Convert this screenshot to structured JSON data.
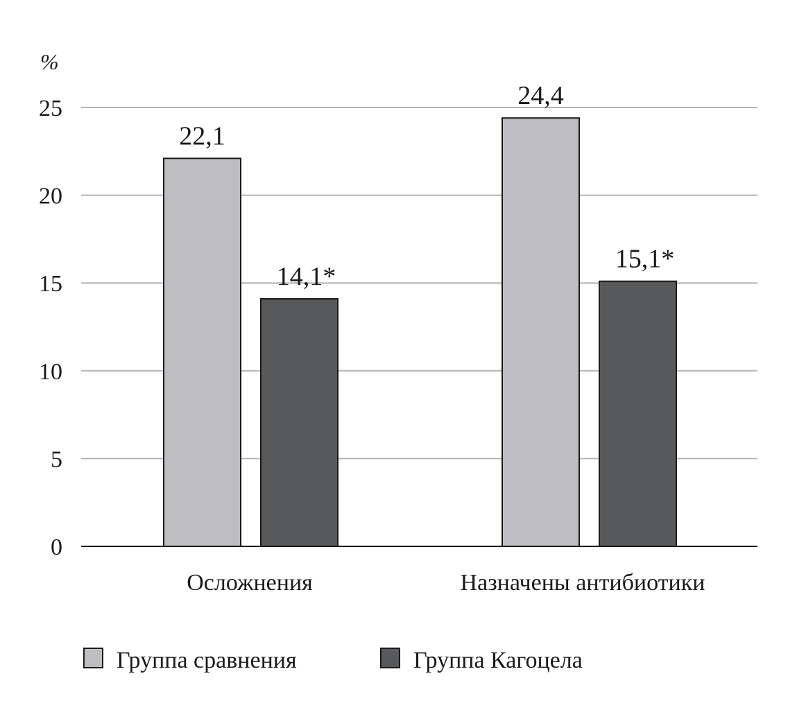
{
  "chart_data": {
    "type": "bar",
    "ylabel": "%",
    "ylim": [
      0,
      25
    ],
    "yticks": [
      "0",
      "5",
      "10",
      "15",
      "20",
      "25"
    ],
    "grid": true,
    "legend_position": "bottom-left",
    "categories": [
      "Осложнения",
      "Назначены антибиотики"
    ],
    "series": [
      {
        "name": "Группа сравнения",
        "color": "#bebec2",
        "values": [
          22.1,
          24.4
        ],
        "labels": [
          "22,1",
          "24,4"
        ]
      },
      {
        "name": "Группа Кагоцела",
        "color": "#58595b",
        "values": [
          14.1,
          15.1
        ],
        "labels": [
          "14,1*",
          "15,1*"
        ]
      }
    ]
  },
  "colors": {
    "grid": "#b5b5b5",
    "axis": "#1a1a1a",
    "bar_outline": "#1a1a1a"
  }
}
